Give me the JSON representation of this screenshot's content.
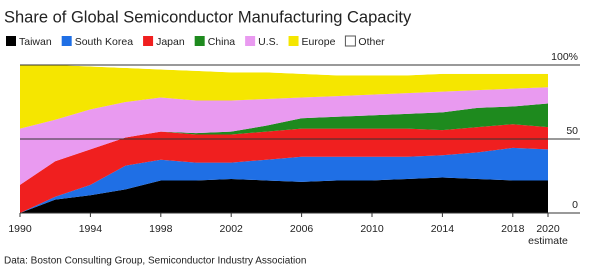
{
  "chart_data": {
    "type": "stacked-area",
    "title": "Share of Global Semiconductor Manufacturing Capacity",
    "source": "Data: Boston Consulting Group, Semiconductor Industry Association",
    "x_note": "estimate",
    "x": [
      1990,
      1992,
      1994,
      1996,
      1998,
      2000,
      2002,
      2004,
      2006,
      2008,
      2010,
      2012,
      2014,
      2016,
      2018,
      2020
    ],
    "series": [
      {
        "name": "Taiwan",
        "color": "#000000",
        "values": [
          0,
          9,
          12,
          16,
          22,
          22,
          23,
          22,
          21,
          22,
          22,
          23,
          24,
          23,
          22,
          22
        ]
      },
      {
        "name": "South Korea",
        "color": "#1f6fe5",
        "values": [
          0,
          2,
          7,
          16,
          14,
          12,
          11,
          14,
          17,
          16,
          16,
          15,
          15,
          18,
          22,
          21
        ]
      },
      {
        "name": "Japan",
        "color": "#f01f1f",
        "values": [
          19,
          24,
          24,
          19,
          19,
          19,
          19,
          19,
          19,
          19,
          19,
          19,
          17,
          17,
          16,
          15
        ]
      },
      {
        "name": "China",
        "color": "#1e8a1e",
        "values": [
          0,
          0,
          0,
          0,
          0,
          1,
          2,
          4,
          7,
          8,
          9,
          10,
          12,
          13,
          12,
          16
        ]
      },
      {
        "name": "U.S.",
        "color": "#e99af0",
        "values": [
          38,
          28,
          27,
          24,
          23,
          22,
          21,
          18,
          14,
          14,
          14,
          14,
          14,
          12,
          12,
          11
        ]
      },
      {
        "name": "Europe",
        "color": "#f5e600",
        "values": [
          43,
          37,
          29,
          23,
          19,
          20,
          19,
          18,
          16,
          14,
          13,
          12,
          12,
          11,
          10,
          9
        ]
      },
      {
        "name": "Other",
        "color": "#ffffff",
        "values": [
          0,
          0,
          1,
          2,
          3,
          4,
          5,
          5,
          6,
          7,
          7,
          7,
          6,
          6,
          6,
          6
        ]
      }
    ],
    "xlim": [
      1990,
      2020
    ],
    "xticks": [
      1990,
      1994,
      1998,
      2002,
      2006,
      2010,
      2014,
      2018,
      2020
    ],
    "ylim": [
      0,
      100
    ],
    "yticks": [
      0,
      50,
      {
        "value": 100,
        "label": "100%"
      }
    ]
  }
}
